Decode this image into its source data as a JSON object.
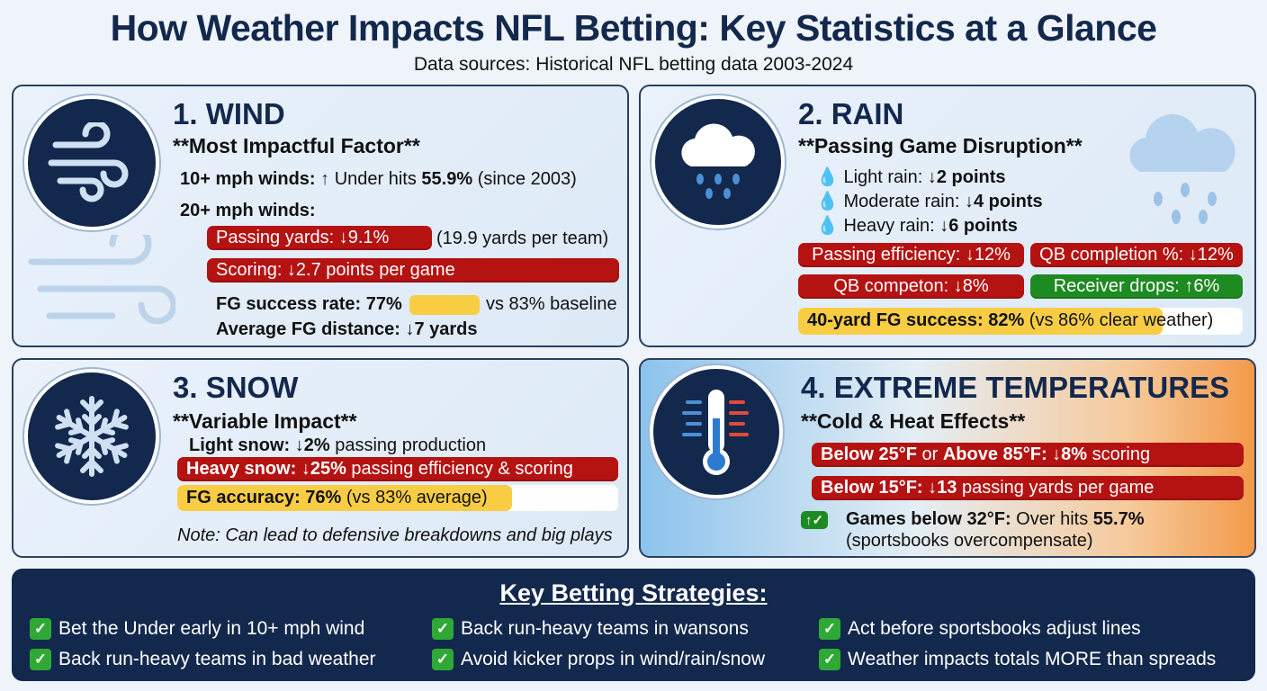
{
  "title": "How Weather Impacts NFL Betting: Key Statistics at a Glance",
  "subtitle": "Data sources: Historical NFL betting data 2003-2024",
  "colors": {
    "navy": "#13284d",
    "red": "#b51212",
    "green": "#1e8a22",
    "yellow": "#f8cd44"
  },
  "wind": {
    "heading": "1. WIND",
    "sub": "**Most Impactful Factor**",
    "icon": "wind-icon",
    "l1a": "10+ mph winds:",
    "l1arrow": "↑",
    "l1b": " Under hits ",
    "l1c": "55.9%",
    "l1d": " (since 2003)",
    "l2": "20+ mph winds:",
    "pill1": "Passing yards: ↓9.1%",
    "pill1_note": "(19.9 yards per team)",
    "pill2": "Scoring: ↓2.7 points per game",
    "fg_a": "FG success rate: 77%",
    "fg_b": "vs 83% baseline",
    "avg": "Average FG distance: ↓7 yards"
  },
  "rain": {
    "heading": "2. RAIN",
    "sub": "**Passing Game Disruption**",
    "icon": "rain-cloud-icon",
    "items": [
      {
        "a": "Light rain: ",
        "b": "↓2 points"
      },
      {
        "a": "Moderate rain: ",
        "b": "↓4 points"
      },
      {
        "a": "Heavy rain: ",
        "b": "↓6 points"
      }
    ],
    "p1": "Passing efficiency: ↓12%",
    "p2": "QB completion %: ↓12%",
    "p3": "QB competon: ↓8%",
    "p4": "Receiver drops: ↑6%",
    "fg_a": "40-yard FG success: 82%",
    "fg_b": " (vs 86% clear weather)",
    "fg_fill_percent": 82
  },
  "snow": {
    "heading": "3. SNOW",
    "sub": "**Variable Impact**",
    "icon": "snowflake-icon",
    "l1a": "Light snow: ↓2%",
    "l1b": " passing production",
    "pill_a": "Heavy snow: ↓25%",
    "pill_b": " passing efficiency & scoring",
    "fg_a": "FG accuracy: 76%",
    "fg_b": " (vs 83% average)",
    "fg_fill_percent": 76,
    "note": "Note: Can lead to defensive breakdowns and big plays"
  },
  "temp": {
    "heading": "4. EXTREME TEMPERATURES",
    "sub": "**Cold & Heat Effects**",
    "icon": "thermometer-icon",
    "p1a": "Below 25°F",
    "p1b": " or ",
    "p1c": "Above 85°F: ↓8%",
    "p1d": " scoring",
    "p2a": "Below 15°F: ↓13",
    "p2b": " passing yards per game",
    "badge": "↑✓",
    "g1a": "Games below 32°F:",
    "g1b": " Over hits ",
    "g1c": "55.7%",
    "g2": "(sportsbooks overcompensate)"
  },
  "strategies": {
    "title": "Key Betting Strategies:",
    "items": [
      "Bet the Under early in 10+ mph wind",
      "Back run-heavy teams in wansons",
      "Act before sportsbooks adjust lines",
      "Back run-heavy teams in bad weather",
      "Avoid kicker props in wind/rain/snow",
      "Weather impacts totals MORE than spreads"
    ]
  }
}
